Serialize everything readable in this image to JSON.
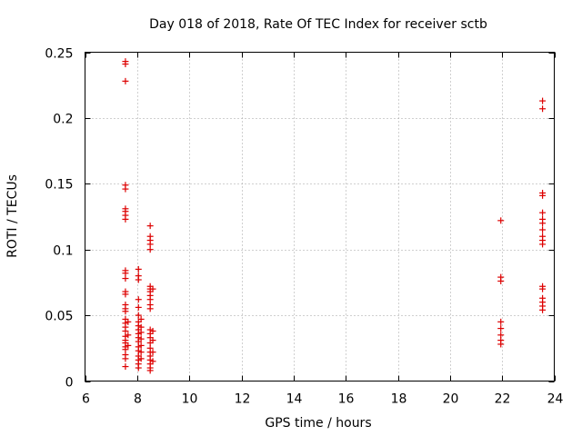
{
  "chart_data": {
    "type": "scatter",
    "title": "Day 018 of 2018, Rate Of TEC Index for receiver sctb",
    "xlabel": "GPS time / hours",
    "ylabel": "ROTI / TECUs",
    "xlim": [
      6,
      24
    ],
    "ylim": [
      0,
      0.25
    ],
    "grid": true,
    "marker": "+",
    "color": "#dd0000",
    "x_ticks": [
      6,
      8,
      10,
      12,
      14,
      16,
      18,
      20,
      22,
      24
    ],
    "x_tick_labels": [
      "6",
      "8",
      "10",
      "12",
      "14",
      "16",
      "18",
      "20",
      "22",
      "24"
    ],
    "y_ticks": [
      0,
      0.05,
      0.1,
      0.15,
      0.2,
      0.25
    ],
    "y_tick_labels": [
      "0",
      "0.05",
      "0.1",
      "0.15",
      "0.2",
      "0.25"
    ],
    "series": [
      {
        "name": "ROTI",
        "points": [
          [
            7.55,
            0.243
          ],
          [
            7.55,
            0.241
          ],
          [
            7.55,
            0.228
          ],
          [
            7.55,
            0.149
          ],
          [
            7.55,
            0.146
          ],
          [
            7.55,
            0.131
          ],
          [
            7.55,
            0.129
          ],
          [
            7.55,
            0.126
          ],
          [
            7.55,
            0.123
          ],
          [
            7.55,
            0.084
          ],
          [
            7.55,
            0.082
          ],
          [
            7.55,
            0.078
          ],
          [
            7.55,
            0.068
          ],
          [
            7.55,
            0.066
          ],
          [
            7.55,
            0.058
          ],
          [
            7.55,
            0.055
          ],
          [
            7.55,
            0.053
          ],
          [
            7.55,
            0.047
          ],
          [
            7.55,
            0.044
          ],
          [
            7.55,
            0.041
          ],
          [
            7.55,
            0.038
          ],
          [
            7.55,
            0.034
          ],
          [
            7.55,
            0.031
          ],
          [
            7.55,
            0.029
          ],
          [
            7.55,
            0.026
          ],
          [
            7.55,
            0.024
          ],
          [
            7.55,
            0.02
          ],
          [
            7.55,
            0.017
          ],
          [
            7.55,
            0.011
          ],
          [
            7.65,
            0.045
          ],
          [
            7.65,
            0.035
          ],
          [
            7.65,
            0.027
          ],
          [
            8.05,
            0.085
          ],
          [
            8.05,
            0.08
          ],
          [
            8.05,
            0.077
          ],
          [
            8.05,
            0.062
          ],
          [
            8.05,
            0.056
          ],
          [
            8.05,
            0.05
          ],
          [
            8.05,
            0.045
          ],
          [
            8.05,
            0.042
          ],
          [
            8.05,
            0.039
          ],
          [
            8.05,
            0.036
          ],
          [
            8.05,
            0.033
          ],
          [
            8.05,
            0.03
          ],
          [
            8.05,
            0.026
          ],
          [
            8.05,
            0.023
          ],
          [
            8.05,
            0.019
          ],
          [
            8.05,
            0.016
          ],
          [
            8.05,
            0.013
          ],
          [
            8.05,
            0.01
          ],
          [
            8.15,
            0.047
          ],
          [
            8.15,
            0.041
          ],
          [
            8.15,
            0.037
          ],
          [
            8.15,
            0.032
          ],
          [
            8.15,
            0.027
          ],
          [
            8.15,
            0.022
          ],
          [
            8.15,
            0.017
          ],
          [
            8.5,
            0.118
          ],
          [
            8.5,
            0.11
          ],
          [
            8.5,
            0.107
          ],
          [
            8.5,
            0.104
          ],
          [
            8.5,
            0.1
          ],
          [
            8.5,
            0.072
          ],
          [
            8.5,
            0.07
          ],
          [
            8.5,
            0.068
          ],
          [
            8.5,
            0.065
          ],
          [
            8.5,
            0.062
          ],
          [
            8.5,
            0.058
          ],
          [
            8.5,
            0.055
          ],
          [
            8.5,
            0.039
          ],
          [
            8.5,
            0.036
          ],
          [
            8.5,
            0.033
          ],
          [
            8.5,
            0.029
          ],
          [
            8.5,
            0.025
          ],
          [
            8.5,
            0.022
          ],
          [
            8.5,
            0.019
          ],
          [
            8.5,
            0.016
          ],
          [
            8.5,
            0.013
          ],
          [
            8.5,
            0.01
          ],
          [
            8.5,
            0.008
          ],
          [
            8.6,
            0.07
          ],
          [
            8.6,
            0.038
          ],
          [
            8.6,
            0.031
          ],
          [
            8.6,
            0.022
          ],
          [
            8.6,
            0.015
          ],
          [
            21.95,
            0.122
          ],
          [
            21.95,
            0.079
          ],
          [
            21.95,
            0.076
          ],
          [
            21.95,
            0.045
          ],
          [
            21.95,
            0.04
          ],
          [
            21.95,
            0.035
          ],
          [
            21.95,
            0.031
          ],
          [
            21.95,
            0.028
          ],
          [
            23.55,
            0.213
          ],
          [
            23.55,
            0.207
          ],
          [
            23.55,
            0.143
          ],
          [
            23.55,
            0.141
          ],
          [
            23.55,
            0.128
          ],
          [
            23.55,
            0.123
          ],
          [
            23.55,
            0.12
          ],
          [
            23.55,
            0.115
          ],
          [
            23.55,
            0.11
          ],
          [
            23.55,
            0.107
          ],
          [
            23.55,
            0.104
          ],
          [
            23.55,
            0.072
          ],
          [
            23.55,
            0.07
          ],
          [
            23.55,
            0.063
          ],
          [
            23.55,
            0.06
          ],
          [
            23.55,
            0.057
          ],
          [
            23.55,
            0.054
          ]
        ]
      }
    ]
  }
}
